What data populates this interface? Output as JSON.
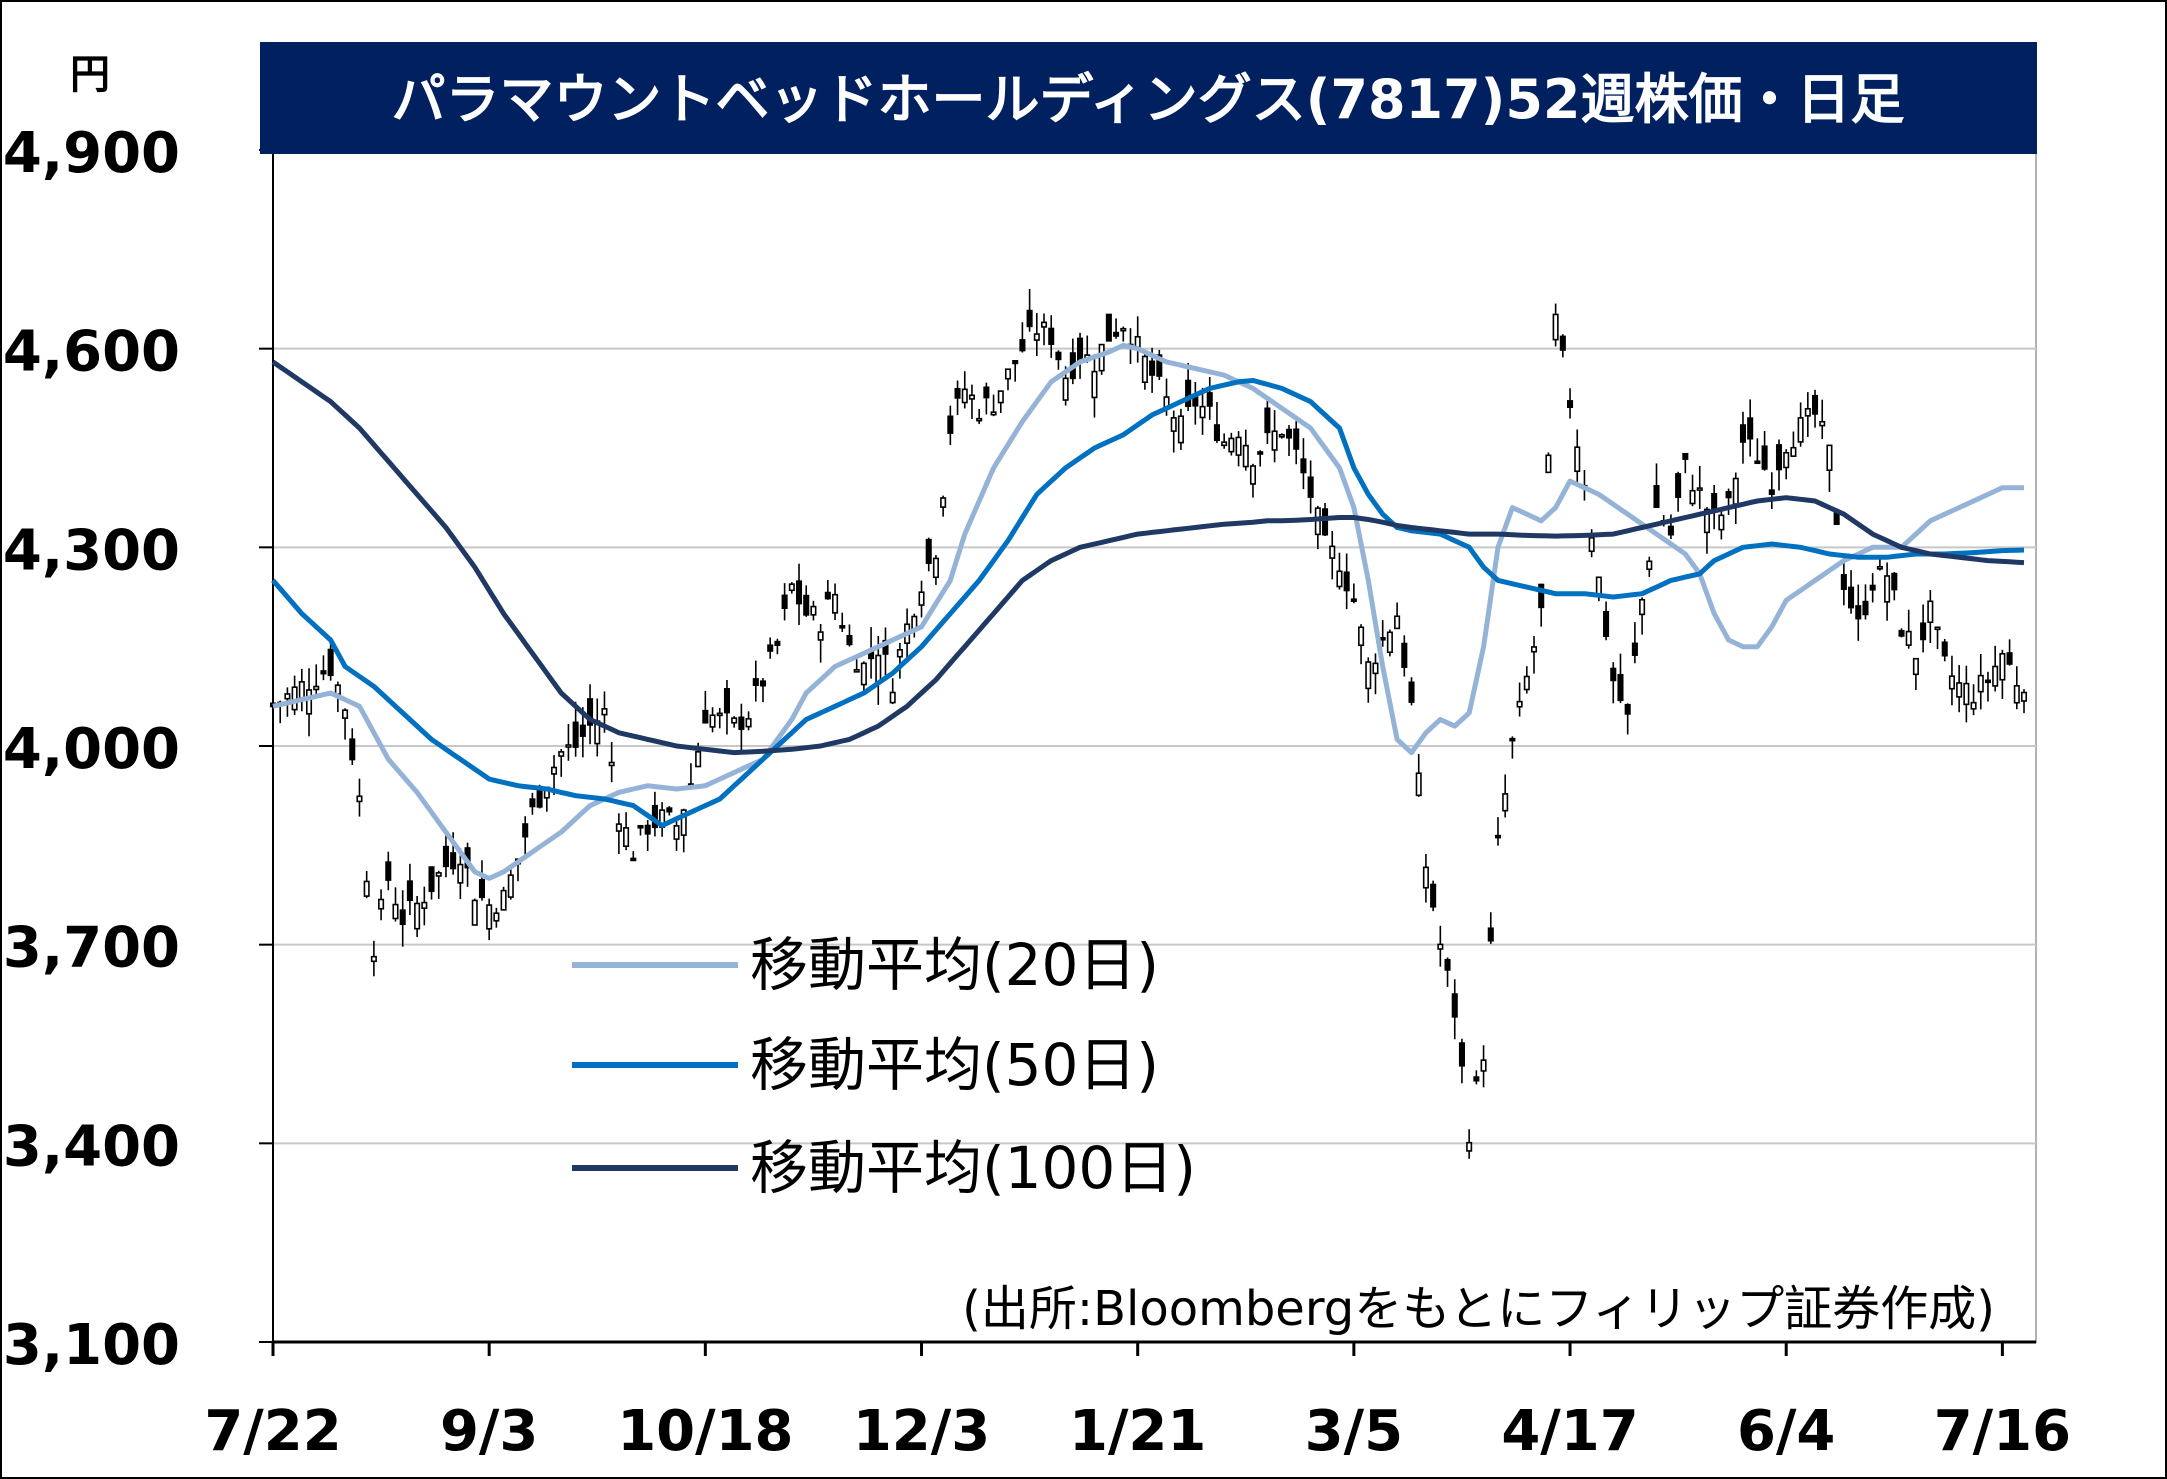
{
  "chart_data": {
    "type": "candlestick-line",
    "title": "パラマウントベッドホールディングス(7817)52週株価・日足",
    "y_unit": "円",
    "ylim": [
      3100,
      4900
    ],
    "yticks": [
      {
        "value": 3100,
        "label": "3,100"
      },
      {
        "value": 3400,
        "label": "3,400"
      },
      {
        "value": 3700,
        "label": "3,700"
      },
      {
        "value": 4000,
        "label": "4,000"
      },
      {
        "value": 4300,
        "label": "4,300"
      },
      {
        "value": 4600,
        "label": "4,600"
      },
      {
        "value": 4900,
        "label": "4,900"
      }
    ],
    "x_day_count": 244,
    "xticks": [
      {
        "index": 0,
        "label": "7/22"
      },
      {
        "index": 30,
        "label": "9/3"
      },
      {
        "index": 60,
        "label": "10/18"
      },
      {
        "index": 90,
        "label": "12/3"
      },
      {
        "index": 120,
        "label": "1/21"
      },
      {
        "index": 150,
        "label": "3/5"
      },
      {
        "index": 180,
        "label": "4/17"
      },
      {
        "index": 210,
        "label": "6/4"
      },
      {
        "index": 240,
        "label": "7/16"
      }
    ],
    "close_anchors": [
      [
        0,
        4060
      ],
      [
        4,
        4090
      ],
      [
        8,
        4120
      ],
      [
        10,
        4060
      ],
      [
        12,
        3920
      ],
      [
        14,
        3700
      ],
      [
        16,
        3800
      ],
      [
        18,
        3740
      ],
      [
        20,
        3760
      ],
      [
        24,
        3820
      ],
      [
        26,
        3840
      ],
      [
        28,
        3780
      ],
      [
        30,
        3760
      ],
      [
        32,
        3770
      ],
      [
        34,
        3830
      ],
      [
        36,
        3900
      ],
      [
        38,
        3950
      ],
      [
        40,
        3990
      ],
      [
        42,
        4000
      ],
      [
        44,
        4030
      ],
      [
        46,
        4050
      ],
      [
        48,
        3900
      ],
      [
        50,
        3840
      ],
      [
        52,
        3880
      ],
      [
        54,
        3890
      ],
      [
        56,
        3880
      ],
      [
        58,
        3940
      ],
      [
        60,
        4050
      ],
      [
        62,
        4040
      ],
      [
        64,
        4030
      ],
      [
        66,
        4050
      ],
      [
        68,
        4100
      ],
      [
        70,
        4150
      ],
      [
        72,
        4240
      ],
      [
        74,
        4200
      ],
      [
        76,
        4190
      ],
      [
        78,
        4230
      ],
      [
        80,
        4150
      ],
      [
        82,
        4120
      ],
      [
        84,
        4150
      ],
      [
        86,
        4100
      ],
      [
        88,
        4180
      ],
      [
        90,
        4250
      ],
      [
        92,
        4300
      ],
      [
        94,
        4480
      ],
      [
        96,
        4540
      ],
      [
        98,
        4510
      ],
      [
        100,
        4520
      ],
      [
        102,
        4560
      ],
      [
        104,
        4600
      ],
      [
        106,
        4630
      ],
      [
        108,
        4620
      ],
      [
        110,
        4560
      ],
      [
        112,
        4590
      ],
      [
        114,
        4580
      ],
      [
        116,
        4620
      ],
      [
        118,
        4640
      ],
      [
        120,
        4600
      ],
      [
        122,
        4560
      ],
      [
        124,
        4520
      ],
      [
        126,
        4480
      ],
      [
        128,
        4520
      ],
      [
        130,
        4500
      ],
      [
        132,
        4460
      ],
      [
        134,
        4480
      ],
      [
        136,
        4440
      ],
      [
        138,
        4460
      ],
      [
        140,
        4480
      ],
      [
        142,
        4440
      ],
      [
        144,
        4380
      ],
      [
        146,
        4300
      ],
      [
        148,
        4280
      ],
      [
        150,
        4220
      ],
      [
        152,
        4120
      ],
      [
        154,
        4160
      ],
      [
        156,
        4200
      ],
      [
        158,
        4060
      ],
      [
        160,
        3820
      ],
      [
        162,
        3700
      ],
      [
        164,
        3600
      ],
      [
        166,
        3420
      ],
      [
        168,
        3540
      ],
      [
        170,
        3850
      ],
      [
        172,
        4000
      ],
      [
        174,
        4100
      ],
      [
        176,
        4200
      ],
      [
        178,
        4640
      ],
      [
        180,
        4520
      ],
      [
        182,
        4400
      ],
      [
        184,
        4250
      ],
      [
        186,
        4100
      ],
      [
        188,
        4040
      ],
      [
        190,
        4220
      ],
      [
        192,
        4360
      ],
      [
        194,
        4320
      ],
      [
        196,
        4420
      ],
      [
        198,
        4380
      ],
      [
        200,
        4340
      ],
      [
        202,
        4360
      ],
      [
        204,
        4460
      ],
      [
        206,
        4440
      ],
      [
        208,
        4400
      ],
      [
        210,
        4460
      ],
      [
        212,
        4480
      ],
      [
        214,
        4500
      ],
      [
        216,
        4440
      ],
      [
        218,
        4250
      ],
      [
        220,
        4180
      ],
      [
        222,
        4250
      ],
      [
        224,
        4260
      ],
      [
        226,
        4180
      ],
      [
        228,
        4140
      ],
      [
        230,
        4200
      ],
      [
        232,
        4120
      ],
      [
        234,
        4090
      ],
      [
        236,
        4080
      ],
      [
        238,
        4100
      ],
      [
        240,
        4140
      ],
      [
        242,
        4100
      ],
      [
        243,
        4100
      ]
    ],
    "series": [
      {
        "name": "移動平均(20日)",
        "color": "#95b3d7",
        "values": [
          [
            0,
            4060
          ],
          [
            8,
            4080
          ],
          [
            12,
            4060
          ],
          [
            16,
            3980
          ],
          [
            20,
            3930
          ],
          [
            24,
            3870
          ],
          [
            28,
            3810
          ],
          [
            30,
            3800
          ],
          [
            32,
            3810
          ],
          [
            36,
            3840
          ],
          [
            40,
            3870
          ],
          [
            44,
            3910
          ],
          [
            48,
            3930
          ],
          [
            52,
            3940
          ],
          [
            56,
            3935
          ],
          [
            60,
            3940
          ],
          [
            64,
            3960
          ],
          [
            68,
            3980
          ],
          [
            72,
            4040
          ],
          [
            74,
            4080
          ],
          [
            78,
            4120
          ],
          [
            82,
            4140
          ],
          [
            86,
            4160
          ],
          [
            90,
            4180
          ],
          [
            94,
            4250
          ],
          [
            96,
            4320
          ],
          [
            100,
            4420
          ],
          [
            104,
            4490
          ],
          [
            108,
            4550
          ],
          [
            112,
            4580
          ],
          [
            116,
            4595
          ],
          [
            118,
            4605
          ],
          [
            120,
            4600
          ],
          [
            124,
            4580
          ],
          [
            128,
            4570
          ],
          [
            132,
            4560
          ],
          [
            136,
            4540
          ],
          [
            140,
            4510
          ],
          [
            144,
            4480
          ],
          [
            148,
            4420
          ],
          [
            150,
            4360
          ],
          [
            152,
            4250
          ],
          [
            154,
            4120
          ],
          [
            156,
            4010
          ],
          [
            158,
            3990
          ],
          [
            160,
            4020
          ],
          [
            162,
            4040
          ],
          [
            164,
            4030
          ],
          [
            166,
            4050
          ],
          [
            168,
            4150
          ],
          [
            170,
            4300
          ],
          [
            172,
            4360
          ],
          [
            174,
            4350
          ],
          [
            176,
            4340
          ],
          [
            178,
            4360
          ],
          [
            180,
            4400
          ],
          [
            184,
            4380
          ],
          [
            188,
            4350
          ],
          [
            192,
            4320
          ],
          [
            196,
            4290
          ],
          [
            198,
            4260
          ],
          [
            200,
            4200
          ],
          [
            202,
            4160
          ],
          [
            204,
            4150
          ],
          [
            206,
            4150
          ],
          [
            208,
            4180
          ],
          [
            210,
            4220
          ],
          [
            214,
            4250
          ],
          [
            218,
            4280
          ],
          [
            222,
            4300
          ],
          [
            226,
            4300
          ],
          [
            230,
            4340
          ],
          [
            234,
            4360
          ],
          [
            238,
            4380
          ],
          [
            240,
            4390
          ],
          [
            243,
            4390
          ]
        ]
      },
      {
        "name": "移動平均(50日)",
        "color": "#0070c0",
        "values": [
          [
            0,
            4250
          ],
          [
            4,
            4200
          ],
          [
            8,
            4160
          ],
          [
            10,
            4120
          ],
          [
            14,
            4090
          ],
          [
            18,
            4050
          ],
          [
            22,
            4010
          ],
          [
            26,
            3980
          ],
          [
            30,
            3950
          ],
          [
            34,
            3940
          ],
          [
            38,
            3935
          ],
          [
            42,
            3925
          ],
          [
            46,
            3920
          ],
          [
            50,
            3910
          ],
          [
            54,
            3880
          ],
          [
            58,
            3900
          ],
          [
            62,
            3920
          ],
          [
            66,
            3960
          ],
          [
            70,
            4000
          ],
          [
            74,
            4040
          ],
          [
            78,
            4060
          ],
          [
            82,
            4080
          ],
          [
            86,
            4110
          ],
          [
            90,
            4150
          ],
          [
            94,
            4200
          ],
          [
            98,
            4250
          ],
          [
            102,
            4310
          ],
          [
            106,
            4380
          ],
          [
            110,
            4420
          ],
          [
            114,
            4450
          ],
          [
            118,
            4470
          ],
          [
            122,
            4500
          ],
          [
            126,
            4520
          ],
          [
            130,
            4540
          ],
          [
            134,
            4550
          ],
          [
            136,
            4552
          ],
          [
            140,
            4540
          ],
          [
            144,
            4520
          ],
          [
            148,
            4480
          ],
          [
            150,
            4420
          ],
          [
            152,
            4380
          ],
          [
            154,
            4350
          ],
          [
            156,
            4330
          ],
          [
            158,
            4325
          ],
          [
            162,
            4320
          ],
          [
            164,
            4310
          ],
          [
            166,
            4300
          ],
          [
            168,
            4270
          ],
          [
            170,
            4250
          ],
          [
            174,
            4240
          ],
          [
            178,
            4230
          ],
          [
            182,
            4230
          ],
          [
            186,
            4225
          ],
          [
            190,
            4230
          ],
          [
            194,
            4250
          ],
          [
            198,
            4260
          ],
          [
            200,
            4280
          ],
          [
            204,
            4300
          ],
          [
            208,
            4305
          ],
          [
            212,
            4300
          ],
          [
            216,
            4290
          ],
          [
            220,
            4285
          ],
          [
            224,
            4285
          ],
          [
            228,
            4290
          ],
          [
            232,
            4290
          ],
          [
            236,
            4292
          ],
          [
            240,
            4295
          ],
          [
            243,
            4296
          ]
        ]
      },
      {
        "name": "移動平均(100日)",
        "color": "#1f3864",
        "values": [
          [
            0,
            4580
          ],
          [
            4,
            4550
          ],
          [
            8,
            4520
          ],
          [
            12,
            4480
          ],
          [
            16,
            4430
          ],
          [
            20,
            4380
          ],
          [
            24,
            4330
          ],
          [
            28,
            4270
          ],
          [
            32,
            4200
          ],
          [
            36,
            4140
          ],
          [
            40,
            4080
          ],
          [
            44,
            4040
          ],
          [
            48,
            4020
          ],
          [
            52,
            4010
          ],
          [
            56,
            4000
          ],
          [
            60,
            3995
          ],
          [
            64,
            3990
          ],
          [
            68,
            3992
          ],
          [
            72,
            3995
          ],
          [
            76,
            4000
          ],
          [
            80,
            4010
          ],
          [
            84,
            4030
          ],
          [
            88,
            4060
          ],
          [
            92,
            4100
          ],
          [
            96,
            4150
          ],
          [
            100,
            4200
          ],
          [
            104,
            4250
          ],
          [
            108,
            4280
          ],
          [
            112,
            4300
          ],
          [
            116,
            4310
          ],
          [
            120,
            4320
          ],
          [
            124,
            4325
          ],
          [
            128,
            4330
          ],
          [
            132,
            4335
          ],
          [
            136,
            4338
          ],
          [
            138,
            4340
          ],
          [
            140,
            4340
          ],
          [
            144,
            4342
          ],
          [
            148,
            4345
          ],
          [
            150,
            4345
          ],
          [
            152,
            4342
          ],
          [
            154,
            4338
          ],
          [
            156,
            4333
          ],
          [
            158,
            4330
          ],
          [
            162,
            4325
          ],
          [
            166,
            4320
          ],
          [
            170,
            4320
          ],
          [
            174,
            4318
          ],
          [
            178,
            4317
          ],
          [
            182,
            4318
          ],
          [
            186,
            4320
          ],
          [
            190,
            4330
          ],
          [
            194,
            4340
          ],
          [
            198,
            4350
          ],
          [
            202,
            4360
          ],
          [
            206,
            4370
          ],
          [
            210,
            4375
          ],
          [
            214,
            4370
          ],
          [
            218,
            4350
          ],
          [
            222,
            4320
          ],
          [
            226,
            4300
          ],
          [
            230,
            4290
          ],
          [
            234,
            4285
          ],
          [
            238,
            4280
          ],
          [
            243,
            4277
          ]
        ]
      }
    ],
    "legend": {
      "position": "center-left",
      "entries": [
        "移動平均(20日)",
        "移動平均(50日)",
        "移動平均(100日)"
      ]
    },
    "source": "(出所:Bloombergをもとにフィリップ証券作成)",
    "grid": true,
    "colors": {
      "title_bg": "#002060",
      "candle": "#000000",
      "candle_up_fill": "#ffffff",
      "candle_down_fill": "#000000",
      "grid": "#c8c8c8"
    }
  }
}
